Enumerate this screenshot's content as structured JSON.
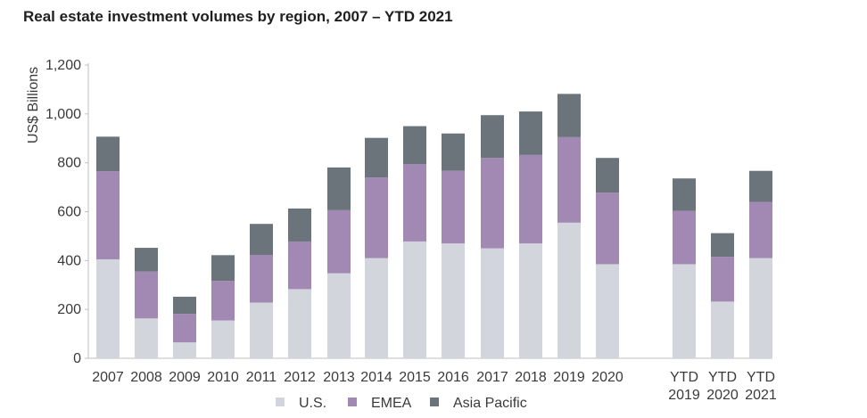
{
  "chart_data": {
    "type": "bar",
    "stacked": true,
    "title": "Real estate investment volumes by region, 2007 – YTD 2021",
    "ylabel": "US$ Billions",
    "xlabel": "",
    "ylim": [
      0,
      1200
    ],
    "yticks": [
      0,
      200,
      400,
      600,
      800,
      1000,
      1200
    ],
    "ytick_labels": [
      "0",
      "200",
      "400",
      "600",
      "800",
      "1,000",
      "1,200"
    ],
    "categories": [
      [
        "2007"
      ],
      [
        "2008"
      ],
      [
        "2009"
      ],
      [
        "2010"
      ],
      [
        "2011"
      ],
      [
        "2012"
      ],
      [
        "2013"
      ],
      [
        "2014"
      ],
      [
        "2015"
      ],
      [
        "2016"
      ],
      [
        "2017"
      ],
      [
        "2018"
      ],
      [
        "2019"
      ],
      [
        "2020"
      ],
      [
        "YTD",
        "2019"
      ],
      [
        "YTD",
        "2020"
      ],
      [
        "YTD",
        "2021"
      ]
    ],
    "gap_after_index": 13,
    "series": [
      {
        "name": "U.S.",
        "color": "#d3d5dc",
        "values": [
          405,
          163,
          65,
          155,
          228,
          283,
          348,
          410,
          478,
          470,
          450,
          470,
          555,
          385,
          385,
          232,
          410
        ]
      },
      {
        "name": "EMEA",
        "color": "#a189b3",
        "values": [
          360,
          192,
          117,
          162,
          195,
          195,
          258,
          330,
          317,
          298,
          370,
          362,
          350,
          293,
          218,
          183,
          230
        ]
      },
      {
        "name": "Asia Pacific",
        "color": "#6b747b",
        "values": [
          142,
          97,
          70,
          105,
          127,
          135,
          175,
          162,
          155,
          152,
          175,
          178,
          177,
          142,
          133,
          97,
          127
        ]
      }
    ],
    "grid": false,
    "legend_position": "bottom"
  }
}
